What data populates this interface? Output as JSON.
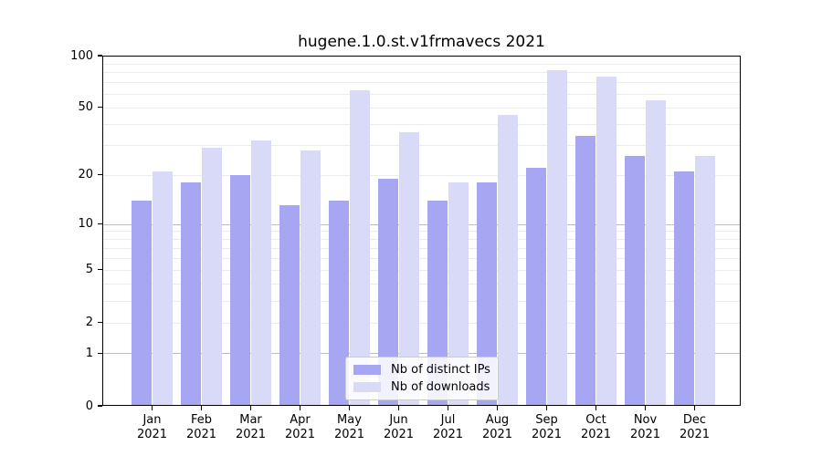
{
  "title": "hugene.1.0.st.v1frmavecs 2021",
  "chart_data": {
    "type": "bar",
    "title": "hugene.1.0.st.v1frmavecs 2021",
    "categories": [
      "Jan",
      "Feb",
      "Mar",
      "Apr",
      "May",
      "Jun",
      "Jul",
      "Aug",
      "Sep",
      "Oct",
      "Nov",
      "Dec"
    ],
    "x_sublabel": "2021",
    "series": [
      {
        "name": "Nb of distinct IPs",
        "color": "#a6a6f2",
        "values": [
          14,
          18,
          20,
          13,
          14,
          19,
          14,
          18,
          22,
          34,
          26,
          21
        ]
      },
      {
        "name": "Nb of downloads",
        "color": "#d9d9f8",
        "values": [
          21,
          29,
          32,
          28,
          63,
          36,
          18,
          45,
          82,
          76,
          55,
          26
        ]
      }
    ],
    "scale": "log1p",
    "ylim": [
      0,
      100
    ],
    "yticks": [
      0,
      1,
      2,
      5,
      10,
      20,
      50,
      100
    ],
    "major_gridlines": [
      1,
      10
    ],
    "minor_gridlines": [
      2,
      3,
      4,
      5,
      6,
      7,
      8,
      9,
      20,
      30,
      40,
      50,
      60,
      70,
      80,
      90
    ],
    "grid": true,
    "legend_position": "lower center",
    "colors": {
      "major_grid": "#bdbdbd",
      "minor_grid": "#ececec",
      "axis": "#000000"
    }
  }
}
